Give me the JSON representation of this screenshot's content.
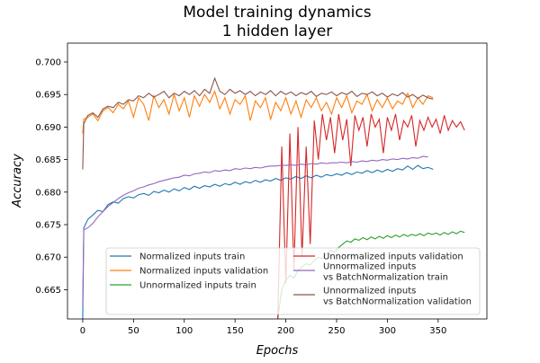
{
  "chart_data": {
    "type": "line",
    "title": "Model training dynamics",
    "subtitle": "1 hidden layer",
    "xlabel": "Epochs",
    "ylabel": "Accuracy",
    "xlim": [
      -15,
      398
    ],
    "ylim": [
      0.6605,
      0.7029
    ],
    "xticks": [
      "0",
      "50",
      "100",
      "150",
      "200",
      "250",
      "300",
      "350"
    ],
    "yticks": [
      "0.665",
      "0.670",
      "0.675",
      "0.680",
      "0.685",
      "0.690",
      "0.695",
      "0.700"
    ],
    "grid": false,
    "legend_placement": "lower-right",
    "series": [
      {
        "name": "Normalized inputs train",
        "color": "#1f77b4",
        "x": [
          0,
          1,
          5,
          10,
          15,
          20,
          25,
          30,
          35,
          40,
          45,
          50,
          55,
          60,
          65,
          70,
          75,
          80,
          85,
          90,
          95,
          100,
          105,
          110,
          115,
          120,
          125,
          130,
          135,
          140,
          145,
          150,
          155,
          160,
          165,
          170,
          175,
          180,
          185,
          190,
          195,
          200,
          205,
          210,
          215,
          220,
          225,
          230,
          235,
          240,
          245,
          250,
          255,
          260,
          265,
          270,
          275,
          280,
          285,
          290,
          295,
          300,
          305,
          310,
          315,
          320,
          325,
          330,
          335,
          340,
          345
        ],
        "y": [
          0.6605,
          0.6745,
          0.6758,
          0.6765,
          0.6772,
          0.677,
          0.6781,
          0.6785,
          0.6783,
          0.679,
          0.6793,
          0.6791,
          0.6796,
          0.6798,
          0.6795,
          0.6801,
          0.6799,
          0.6803,
          0.68,
          0.6805,
          0.6802,
          0.6807,
          0.6804,
          0.6809,
          0.6806,
          0.681,
          0.6808,
          0.6812,
          0.6809,
          0.6813,
          0.6811,
          0.6815,
          0.6812,
          0.6816,
          0.6814,
          0.6818,
          0.6815,
          0.6819,
          0.6817,
          0.6821,
          0.6818,
          0.6822,
          0.682,
          0.6824,
          0.6821,
          0.6825,
          0.6822,
          0.6826,
          0.6823,
          0.6827,
          0.6825,
          0.6828,
          0.6826,
          0.683,
          0.6827,
          0.6831,
          0.6829,
          0.6833,
          0.683,
          0.6834,
          0.6831,
          0.6835,
          0.6832,
          0.6836,
          0.6834,
          0.684,
          0.6835,
          0.6841,
          0.6836,
          0.6838,
          0.6835
        ]
      },
      {
        "name": "Normalized inputs validation",
        "color": "#ff7f0e",
        "x": [
          0,
          1,
          5,
          10,
          15,
          20,
          25,
          30,
          35,
          40,
          45,
          50,
          55,
          60,
          65,
          70,
          75,
          80,
          85,
          90,
          95,
          100,
          105,
          110,
          115,
          120,
          125,
          130,
          135,
          140,
          145,
          150,
          155,
          160,
          165,
          170,
          175,
          180,
          185,
          190,
          195,
          200,
          205,
          210,
          215,
          220,
          225,
          230,
          235,
          240,
          245,
          250,
          255,
          260,
          265,
          270,
          275,
          280,
          285,
          290,
          295,
          300,
          305,
          310,
          315,
          320,
          325,
          330,
          335,
          340,
          345
        ],
        "y": [
          0.689,
          0.6912,
          0.6915,
          0.692,
          0.691,
          0.6925,
          0.693,
          0.6922,
          0.6935,
          0.6928,
          0.694,
          0.6915,
          0.6945,
          0.6935,
          0.691,
          0.6948,
          0.693,
          0.6942,
          0.692,
          0.695,
          0.6925,
          0.6945,
          0.6915,
          0.6948,
          0.6932,
          0.695,
          0.6938,
          0.6955,
          0.6928,
          0.6945,
          0.692,
          0.6942,
          0.6935,
          0.6948,
          0.691,
          0.694,
          0.693,
          0.6945,
          0.6912,
          0.6938,
          0.6925,
          0.6945,
          0.692,
          0.694,
          0.6915,
          0.6942,
          0.693,
          0.6945,
          0.6925,
          0.6938,
          0.692,
          0.6945,
          0.693,
          0.6948,
          0.6922,
          0.694,
          0.6935,
          0.695,
          0.6925,
          0.6942,
          0.693,
          0.6945,
          0.6928,
          0.694,
          0.6935,
          0.6952,
          0.693,
          0.6945,
          0.6935,
          0.6948,
          0.6945
        ]
      },
      {
        "name": "Unnormalized inputs train",
        "color": "#2ca02c",
        "x": [
          192,
          196,
          200,
          204,
          208,
          212,
          216,
          220,
          224,
          228,
          232,
          236,
          240,
          244,
          248,
          252,
          256,
          260,
          264,
          268,
          272,
          276,
          280,
          284,
          288,
          292,
          296,
          300,
          304,
          308,
          312,
          316,
          320,
          324,
          328,
          332,
          336,
          340,
          344,
          348,
          352,
          356,
          360,
          364,
          368,
          372,
          376
        ],
        "y": [
          0.6605,
          0.665,
          0.6665,
          0.6672,
          0.6668,
          0.668,
          0.6685,
          0.669,
          0.6688,
          0.6695,
          0.67,
          0.6698,
          0.6705,
          0.671,
          0.6708,
          0.6715,
          0.672,
          0.6725,
          0.6723,
          0.6728,
          0.6726,
          0.673,
          0.6727,
          0.6731,
          0.6728,
          0.6732,
          0.6729,
          0.6733,
          0.673,
          0.6734,
          0.6731,
          0.6735,
          0.6732,
          0.6735,
          0.6733,
          0.6736,
          0.6733,
          0.6737,
          0.6735,
          0.6737,
          0.6734,
          0.6738,
          0.6735,
          0.6739,
          0.6736,
          0.674,
          0.6738
        ]
      },
      {
        "name": "Unnormalized inputs validation",
        "color": "#d62728",
        "x": [
          192,
          196,
          200,
          204,
          208,
          212,
          216,
          220,
          224,
          228,
          232,
          236,
          240,
          244,
          248,
          252,
          256,
          260,
          264,
          268,
          272,
          276,
          280,
          284,
          288,
          292,
          296,
          300,
          304,
          308,
          312,
          316,
          320,
          324,
          328,
          332,
          336,
          340,
          344,
          348,
          352,
          356,
          360,
          364,
          368,
          372,
          376
        ],
        "y": [
          0.6605,
          0.687,
          0.666,
          0.689,
          0.668,
          0.69,
          0.67,
          0.687,
          0.672,
          0.691,
          0.685,
          0.692,
          0.688,
          0.6915,
          0.686,
          0.692,
          0.688,
          0.6912,
          0.684,
          0.6918,
          0.6895,
          0.6915,
          0.687,
          0.692,
          0.69,
          0.6912,
          0.686,
          0.6915,
          0.6895,
          0.692,
          0.688,
          0.691,
          0.69,
          0.6918,
          0.687,
          0.691,
          0.6895,
          0.6915,
          0.69,
          0.6912,
          0.689,
          0.6918,
          0.6895,
          0.691,
          0.69,
          0.6908,
          0.6895
        ]
      },
      {
        "name": "Unnormalized inputs\nvs BatchNormalization train",
        "color": "#9467bd",
        "x": [
          0,
          1,
          5,
          10,
          15,
          20,
          25,
          30,
          35,
          40,
          45,
          50,
          55,
          60,
          65,
          70,
          75,
          80,
          85,
          90,
          95,
          100,
          105,
          110,
          115,
          120,
          125,
          130,
          135,
          140,
          145,
          150,
          155,
          160,
          165,
          170,
          175,
          180,
          185,
          190,
          195,
          200,
          205,
          210,
          215,
          220,
          225,
          230,
          235,
          240,
          245,
          250,
          255,
          260,
          265,
          270,
          275,
          280,
          285,
          290,
          295,
          300,
          305,
          310,
          315,
          320,
          325,
          330,
          335,
          340
        ],
        "y": [
          0.6625,
          0.6742,
          0.6745,
          0.6752,
          0.6762,
          0.677,
          0.6778,
          0.6784,
          0.679,
          0.6795,
          0.6799,
          0.6802,
          0.6806,
          0.6808,
          0.6811,
          0.6813,
          0.6816,
          0.6818,
          0.682,
          0.6822,
          0.6823,
          0.6826,
          0.6825,
          0.6828,
          0.6829,
          0.6831,
          0.683,
          0.6833,
          0.6832,
          0.6834,
          0.6833,
          0.6836,
          0.6835,
          0.6837,
          0.6836,
          0.6838,
          0.6837,
          0.6839,
          0.684,
          0.684,
          0.6841,
          0.6841,
          0.6842,
          0.6841,
          0.6843,
          0.6842,
          0.6844,
          0.6843,
          0.6845,
          0.6844,
          0.6845,
          0.6845,
          0.6846,
          0.6845,
          0.6847,
          0.6846,
          0.6848,
          0.6847,
          0.6849,
          0.6848,
          0.685,
          0.6849,
          0.6851,
          0.685,
          0.6852,
          0.6851,
          0.6853,
          0.6852,
          0.6855,
          0.6854
        ]
      },
      {
        "name": "Unnormalized inputs\nvs BatchNormalization validation",
        "color": "#8c564b",
        "x": [
          0,
          1,
          5,
          10,
          15,
          20,
          25,
          30,
          35,
          40,
          45,
          50,
          55,
          60,
          65,
          70,
          75,
          80,
          85,
          90,
          95,
          100,
          105,
          110,
          115,
          120,
          125,
          130,
          135,
          140,
          145,
          150,
          155,
          160,
          165,
          170,
          175,
          180,
          185,
          190,
          195,
          200,
          205,
          210,
          215,
          220,
          225,
          230,
          235,
          240,
          245,
          250,
          255,
          260,
          265,
          270,
          275,
          280,
          285,
          290,
          295,
          300,
          305,
          310,
          315,
          320,
          325,
          330,
          335,
          340,
          345
        ],
        "y": [
          0.6835,
          0.6905,
          0.6918,
          0.6922,
          0.6915,
          0.6928,
          0.6932,
          0.693,
          0.6938,
          0.6935,
          0.6942,
          0.694,
          0.6948,
          0.6945,
          0.6952,
          0.6946,
          0.695,
          0.6955,
          0.6945,
          0.6952,
          0.6948,
          0.6955,
          0.695,
          0.6956,
          0.6948,
          0.6958,
          0.6952,
          0.6975,
          0.6955,
          0.695,
          0.6958,
          0.6952,
          0.6956,
          0.695,
          0.6955,
          0.6948,
          0.6954,
          0.695,
          0.6956,
          0.6948,
          0.6955,
          0.695,
          0.6954,
          0.6948,
          0.6953,
          0.695,
          0.6955,
          0.6947,
          0.6952,
          0.695,
          0.6954,
          0.6948,
          0.6953,
          0.695,
          0.6955,
          0.6947,
          0.6952,
          0.695,
          0.6954,
          0.6948,
          0.6952,
          0.6946,
          0.6951,
          0.6948,
          0.6953,
          0.6946,
          0.695,
          0.6944,
          0.6949,
          0.6945,
          0.6943
        ]
      }
    ]
  }
}
